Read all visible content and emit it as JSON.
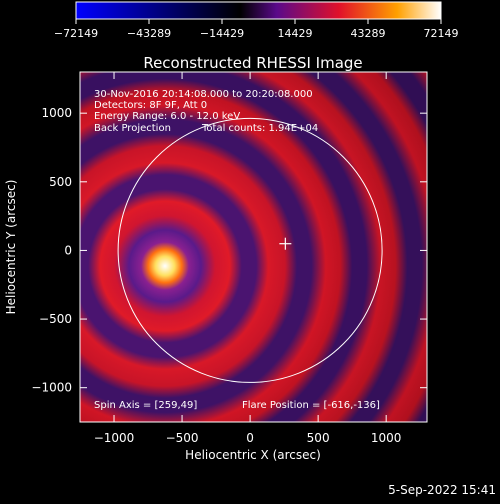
{
  "colorbar": {
    "ticks": [
      "-72149",
      "-43289",
      "-14429",
      "14429",
      "43289",
      "72149"
    ],
    "colors": [
      "#0000ff",
      "#000000",
      "#5a0a8a",
      "#e0102a",
      "#ffa000",
      "#ffffff"
    ]
  },
  "chart_data": {
    "type": "heatmap",
    "title": "Reconstructed RHESSI Image",
    "xlabel": "Heliocentric X (arcsec)",
    "ylabel": "Heliocentric Y (arcsec)",
    "xlim": [
      -1250,
      1300
    ],
    "ylim": [
      -1250,
      1300
    ],
    "xticks": [
      -1000,
      -500,
      0,
      500,
      1000
    ],
    "yticks": [
      -1000,
      -500,
      0,
      500,
      1000
    ],
    "value_range": [
      -72149,
      72149
    ],
    "annotations": [
      "30-Nov-2016 20:14:08.000 to 20:20:08.000",
      "Detectors: 8F 9F, Att 0",
      "Energy Range: 6.0 - 12.0 keV",
      "Back Projection",
      "Total counts: 1.94E+04"
    ],
    "spin_axis_label": "Spin Axis = [259,49]",
    "flare_position_label": "Flare Position = [-616,-136]",
    "flare_position": [
      -616,
      -136
    ],
    "spin_axis": [
      259,
      49
    ],
    "solar_disk_center": [
      0,
      0
    ],
    "solar_disk_radius": 970
  },
  "timestamp": "5-Sep-2022 15:41"
}
